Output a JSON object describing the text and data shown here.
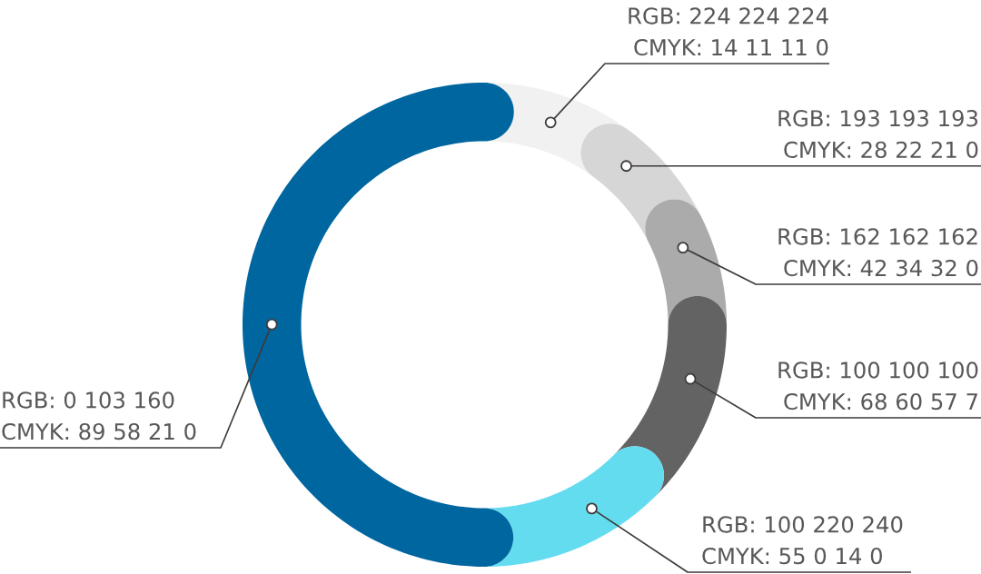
{
  "chart_data": {
    "type": "donut",
    "categories": [
      "RGB: 224 224 224\nCMYK: 14 11 11 0",
      "RGB: 193 193 193\nCMYK: 28 22 21 0",
      "RGB: 162 162 162\nCMYK: 42 34 32 0",
      "RGB: 100 100 100\nCMYK: 68 60 57 7",
      "RGB: 100 220 240\nCMYK: 55 0 14 0",
      "RGB: 0 103 160\nCMYK: 89 58 21 0"
    ],
    "values": [
      6.6,
      7.5,
      7.5,
      12.5,
      12.5,
      53.4
    ],
    "colors": [
      "#f1f1f1",
      "#d6d6d6",
      "#ababab",
      "#636363",
      "#64dcf0",
      "#0066a0"
    ]
  }
}
